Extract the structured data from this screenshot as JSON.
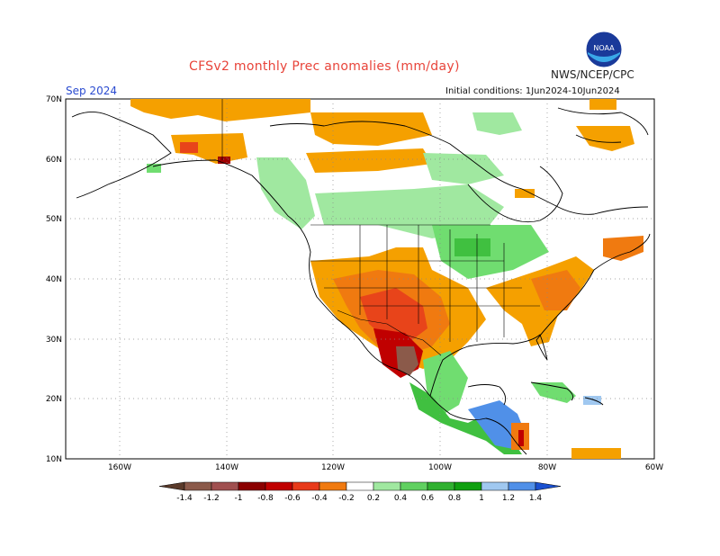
{
  "header": {
    "title": "CFSv2 monthly Prec anomalies (mm/day)",
    "organization": "NWS/NCEP/CPC",
    "logo_text": "NOAA",
    "month_label": "Sep 2024",
    "initial_conditions": "Initial conditions: 1Jun2024-10Jun2024"
  },
  "map": {
    "lon_range": [
      -170,
      -60
    ],
    "lat_range": [
      10,
      70
    ],
    "lat_labels": [
      "70N",
      "60N",
      "50N",
      "40N",
      "30N",
      "20N",
      "10N"
    ],
    "lon_labels": [
      "160W",
      "140W",
      "120W",
      "100W",
      "80W",
      "60W"
    ],
    "grid": "dotted"
  },
  "legend": {
    "labels": [
      "-1.4",
      "-1.2",
      "-1",
      "-0.8",
      "-0.6",
      "-0.4",
      "-0.2",
      "0.2",
      "0.4",
      "0.6",
      "0.8",
      "1",
      "1.2",
      "1.4"
    ],
    "colors": {
      "low_arrow": "#5a3a2a",
      "bins": [
        "#8b5a4a",
        "#a05050",
        "#8b0000",
        "#c00000",
        "#e83a1a",
        "#f07a10",
        "#ffffff",
        "#a0e8a0",
        "#60d060",
        "#30b030",
        "#10a010",
        "#a0c8f0",
        "#5090e8"
      ],
      "high_arrow": "#1a50d0"
    }
  }
}
